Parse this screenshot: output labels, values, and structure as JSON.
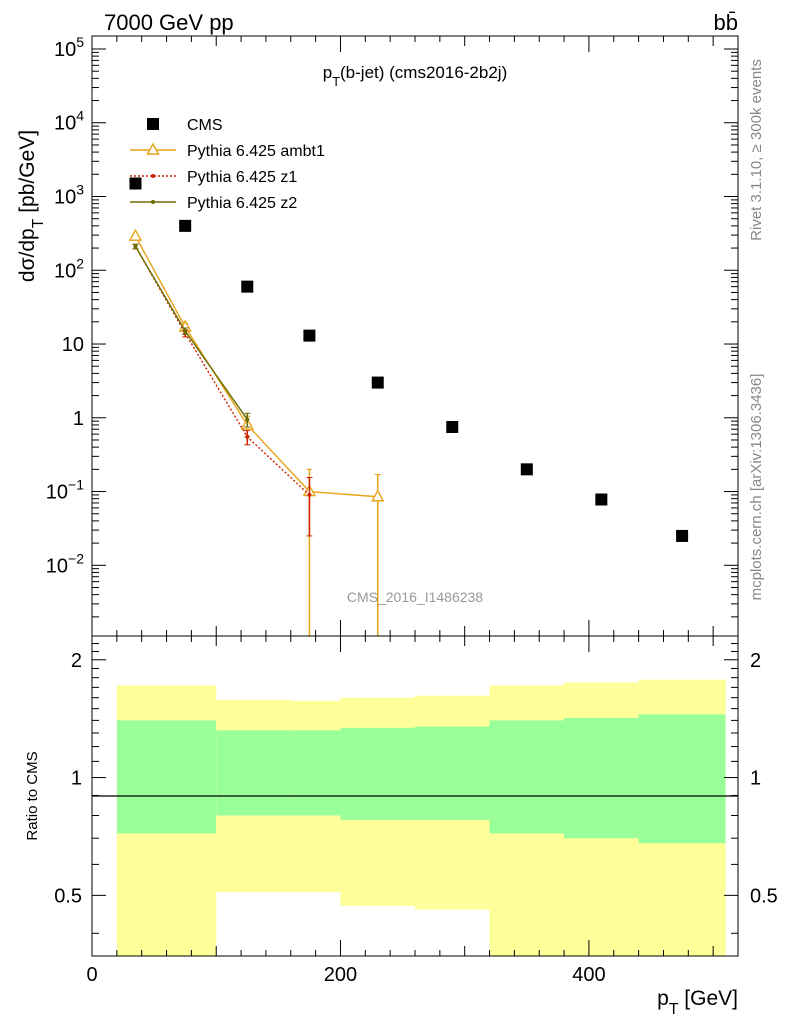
{
  "header": {
    "left": "7000 GeV pp",
    "right": "bb̄"
  },
  "watermark": "CMS_2016_I1486238",
  "side_text": {
    "rivet": "Rivet 3.1.10, ≥ 300k events",
    "mcplots": "mcplots.cern.ch [arXiv:1306.3436]"
  },
  "colors": {
    "cms": "#000000",
    "ambt1": "#e8a317",
    "z1": "#cc2200",
    "z2": "#6b6b00",
    "band_inner": "#99ff99",
    "band_outer": "#ffff99"
  },
  "chart_data": [
    {
      "type": "scatter",
      "title": "p_T(b-jet) (cms2016-2b2j)",
      "ylabel": "dσ/dp_T [pb/GeV]",
      "yscale": "log",
      "ylim": [
        0.0011,
        150000
      ],
      "xlim": [
        0,
        520
      ],
      "y_ticklabels": [
        "10^5",
        "10^4",
        "10^3",
        "10^2",
        "10",
        "1",
        "10^-1",
        "10^-2"
      ],
      "legend_placement": "upper-left",
      "series": [
        {
          "name": "CMS",
          "style": "markers",
          "x": [
            35,
            75,
            125,
            175,
            230,
            290,
            350,
            410,
            475
          ],
          "y": [
            1500,
            400,
            60,
            13,
            3,
            0.75,
            0.2,
            0.078,
            0.025
          ]
        },
        {
          "name": "Pythia 6.425 ambt1",
          "style": "line-triangle",
          "x": [
            35,
            75,
            125,
            175,
            230
          ],
          "y": [
            290,
            17,
            0.8,
            0.1,
            0.085
          ],
          "err_low": [
            20,
            2,
            0.25,
            0.1,
            0.085
          ],
          "err_high": [
            20,
            2,
            0.25,
            0.1,
            0.085
          ]
        },
        {
          "name": "Pythia 6.425 z1",
          "style": "dotted",
          "x": [
            35,
            75,
            125,
            175
          ],
          "y": [
            210,
            14,
            0.55,
            0.09
          ],
          "err_low": [
            15,
            1.5,
            0.12,
            0.065
          ],
          "err_high": [
            15,
            1.5,
            0.12,
            0.065
          ]
        },
        {
          "name": "Pythia 6.425 z2",
          "style": "line-dot",
          "x": [
            35,
            75,
            125
          ],
          "y": [
            210,
            15,
            0.95
          ],
          "err_low": [
            15,
            1.5,
            0.2
          ],
          "err_high": [
            15,
            1.5,
            0.2
          ]
        }
      ]
    },
    {
      "type": "area",
      "ylabel": "Ratio to CMS",
      "xlabel": "p_T [GeV]",
      "xlim": [
        0,
        520
      ],
      "ylim": [
        0.35,
        2.3
      ],
      "x_ticks": [
        0,
        200,
        400
      ],
      "y_ticks": [
        0.5,
        1,
        2
      ],
      "reference_line": 1,
      "bins": [
        20,
        100,
        160,
        200,
        260,
        320,
        380,
        440,
        510
      ],
      "band_inner_low": [
        0.72,
        0.8,
        0.8,
        0.78,
        0.78,
        0.72,
        0.7,
        0.68
      ],
      "band_inner_high": [
        1.4,
        1.32,
        1.32,
        1.34,
        1.35,
        1.4,
        1.42,
        1.45
      ],
      "band_outer_low": [
        0.35,
        0.51,
        0.51,
        0.47,
        0.46,
        0.35,
        0.35,
        0.35
      ],
      "band_outer_high": [
        1.72,
        1.58,
        1.57,
        1.6,
        1.62,
        1.72,
        1.75,
        1.78
      ]
    }
  ]
}
